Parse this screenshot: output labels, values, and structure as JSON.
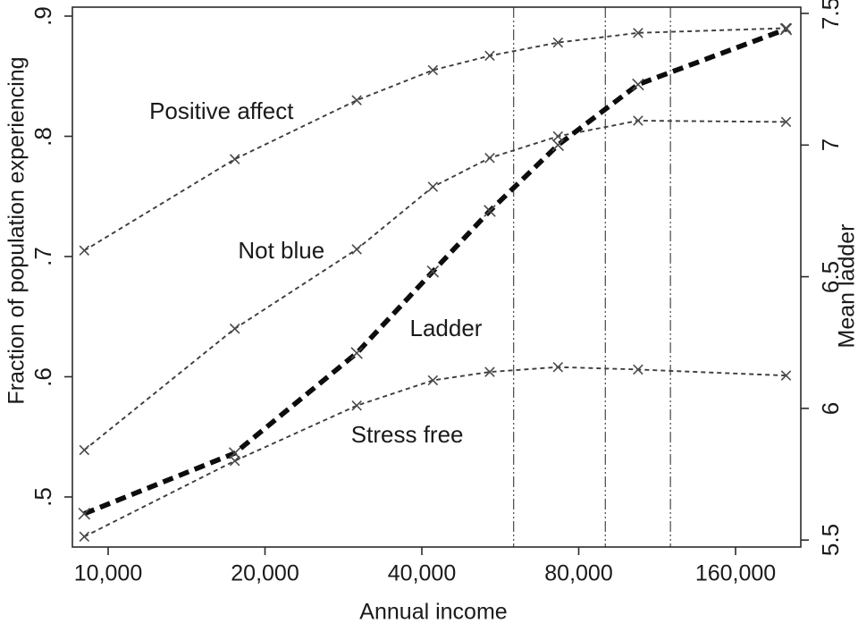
{
  "figure": {
    "background": "#ffffff",
    "frame_color": "#2b2b2b",
    "text_color": "#1a1a1a",
    "thin_line_color": "#3d3d3d",
    "thick_line_color": "#0d0d0d",
    "marker_color": "#4a4a4a",
    "ref_line_color": "#555555"
  },
  "chart_data": {
    "type": "line",
    "title": "",
    "xlabel": "Annual income",
    "ylabel_left": "Fraction of population experiencing",
    "ylabel_right": "Mean ladder",
    "x_scale": "log2",
    "x_ticks": [
      10000,
      20000,
      40000,
      80000,
      160000
    ],
    "x_tick_labels": [
      "10,000",
      "20,000",
      "40,000",
      "80,000",
      "160,000"
    ],
    "x_range": [
      8500,
      214000
    ],
    "y_left_ticks": [
      0.5,
      0.6,
      0.7,
      0.8,
      0.9
    ],
    "y_left_tick_labels": [
      ".5",
      ".6",
      ".7",
      ".8",
      ".9"
    ],
    "y_left_range": [
      0.458,
      0.907
    ],
    "y_right_ticks": [
      5.5,
      6,
      6.5,
      7,
      7.5
    ],
    "y_right_tick_labels": [
      "5.5",
      "6",
      "6.5",
      "7",
      "7.5"
    ],
    "y_right_range": [
      5.474,
      7.524
    ],
    "grid": false,
    "legend": "inline-labels",
    "x": [
      9000,
      17500,
      30000,
      42000,
      54000,
      73000,
      104000,
      200000
    ],
    "reference_lines_x": [
      60000,
      90000,
      120000
    ],
    "marker": "x",
    "series": [
      {
        "name": "Not blue",
        "axis": "left",
        "style": "thin-dashed",
        "values": [
          0.539,
          0.64,
          0.706,
          0.758,
          0.782,
          0.8,
          0.813,
          0.812
        ],
        "label": {
          "text": "Not blue",
          "x": 21500,
          "y": 0.705
        }
      },
      {
        "name": "Positive affect",
        "axis": "left",
        "style": "thin-dashed",
        "values": [
          0.705,
          0.781,
          0.83,
          0.855,
          0.867,
          0.878,
          0.886,
          0.89
        ],
        "label": {
          "text": "Positive affect",
          "x": 16500,
          "y": 0.821
        }
      },
      {
        "name": "Stress free",
        "axis": "left",
        "style": "thin-dashed",
        "values": [
          0.467,
          0.53,
          0.576,
          0.597,
          0.604,
          0.608,
          0.606,
          0.601
        ],
        "label": {
          "text": "Stress free",
          "x": 37500,
          "y": 0.552
        }
      },
      {
        "name": "Ladder",
        "axis": "right",
        "style": "thick-dashed",
        "values": [
          5.6,
          5.83,
          6.21,
          6.52,
          6.75,
          7.0,
          7.23,
          7.44
        ],
        "label": {
          "text": "Ladder",
          "x": 44500,
          "y": 6.305
        }
      }
    ]
  }
}
